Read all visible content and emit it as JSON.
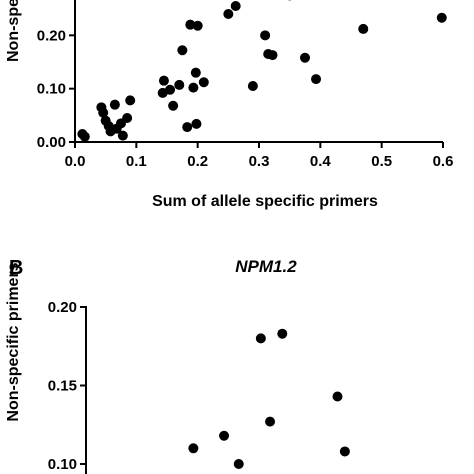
{
  "chart_data": [
    {
      "type": "scatter",
      "panel_label": "",
      "title": "",
      "xlabel": "Sum of allele specific primers",
      "ylabel": "Non-spe",
      "xlim": [
        0,
        0.6
      ],
      "ylim": [
        0,
        0.3
      ],
      "x_ticks": [
        "0.0",
        "0.1",
        "0.2",
        "0.3",
        "0.4",
        "0.5",
        "0.6"
      ],
      "y_ticks": [
        "0.00",
        "0.10",
        "0.20"
      ],
      "point_color": "#000000",
      "points": [
        {
          "x": 0.012,
          "y": 0.015
        },
        {
          "x": 0.016,
          "y": 0.01
        },
        {
          "x": 0.043,
          "y": 0.065
        },
        {
          "x": 0.046,
          "y": 0.055
        },
        {
          "x": 0.05,
          "y": 0.04
        },
        {
          "x": 0.055,
          "y": 0.03
        },
        {
          "x": 0.058,
          "y": 0.02
        },
        {
          "x": 0.065,
          "y": 0.07
        },
        {
          "x": 0.068,
          "y": 0.025
        },
        {
          "x": 0.075,
          "y": 0.035
        },
        {
          "x": 0.078,
          "y": 0.012
        },
        {
          "x": 0.085,
          "y": 0.045
        },
        {
          "x": 0.09,
          "y": 0.078
        },
        {
          "x": 0.143,
          "y": 0.092
        },
        {
          "x": 0.145,
          "y": 0.115
        },
        {
          "x": 0.155,
          "y": 0.098
        },
        {
          "x": 0.16,
          "y": 0.068
        },
        {
          "x": 0.17,
          "y": 0.107
        },
        {
          "x": 0.175,
          "y": 0.172
        },
        {
          "x": 0.183,
          "y": 0.028
        },
        {
          "x": 0.188,
          "y": 0.22
        },
        {
          "x": 0.193,
          "y": 0.102
        },
        {
          "x": 0.197,
          "y": 0.13
        },
        {
          "x": 0.198,
          "y": 0.034
        },
        {
          "x": 0.2,
          "y": 0.218
        },
        {
          "x": 0.21,
          "y": 0.112
        },
        {
          "x": 0.25,
          "y": 0.24
        },
        {
          "x": 0.262,
          "y": 0.255
        },
        {
          "x": 0.29,
          "y": 0.105
        },
        {
          "x": 0.31,
          "y": 0.2
        },
        {
          "x": 0.315,
          "y": 0.165
        },
        {
          "x": 0.322,
          "y": 0.163
        },
        {
          "x": 0.35,
          "y": 0.275
        },
        {
          "x": 0.375,
          "y": 0.158
        },
        {
          "x": 0.393,
          "y": 0.118
        },
        {
          "x": 0.47,
          "y": 0.212
        },
        {
          "x": 0.598,
          "y": 0.233
        }
      ]
    },
    {
      "type": "scatter",
      "panel_label": "B",
      "title": "NPM1.2",
      "xlabel": "",
      "ylabel": "Non-specific primers",
      "ylim": [
        0.09,
        0.2
      ],
      "y_ticks": [
        "0.10",
        "0.15",
        "0.20"
      ],
      "point_color": "#000000",
      "points": [
        {
          "x": 0.193,
          "y": 0.11
        },
        {
          "x": 0.243,
          "y": 0.118
        },
        {
          "x": 0.267,
          "y": 0.1
        },
        {
          "x": 0.303,
          "y": 0.18
        },
        {
          "x": 0.318,
          "y": 0.127
        },
        {
          "x": 0.338,
          "y": 0.183
        },
        {
          "x": 0.428,
          "y": 0.143
        },
        {
          "x": 0.44,
          "y": 0.108
        }
      ]
    }
  ]
}
